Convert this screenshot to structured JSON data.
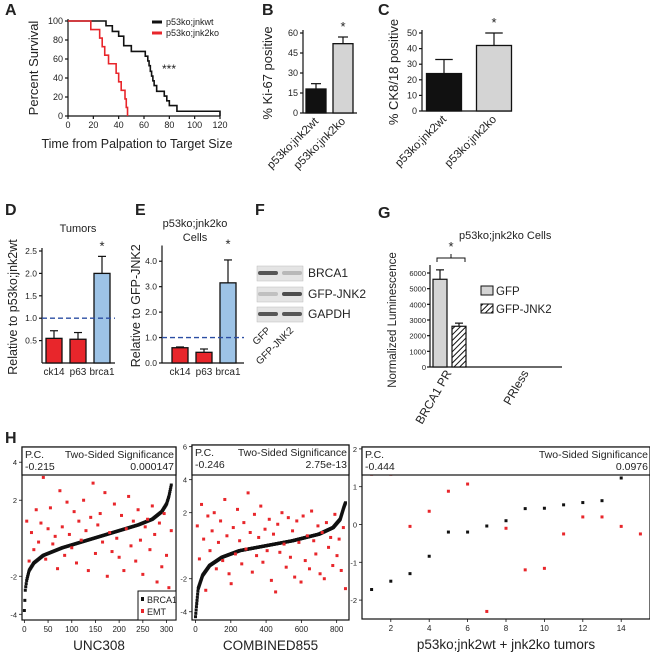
{
  "panel_letters": {
    "A": "A",
    "B": "B",
    "C": "C",
    "D": "D",
    "E": "E",
    "F": "F",
    "G": "G",
    "H": "H"
  },
  "colors": {
    "black": "#111111",
    "red": "#e8262b",
    "gray": "#d4d4d4",
    "blue": "#9dc3e6",
    "dashed": "#2b4ea3"
  },
  "chart_data": [
    {
      "id": "A",
      "type": "line",
      "title": "",
      "xlabel": "Time from Palpation to Target Size",
      "ylabel": "Percent Survival",
      "xlim": [
        0,
        120
      ],
      "ylim": [
        0,
        100
      ],
      "xticks": [
        "0",
        "20",
        "40",
        "60",
        "80",
        "100",
        "120"
      ],
      "yticks": [
        "0",
        "20",
        "40",
        "60",
        "80",
        "100"
      ],
      "annotation": "***",
      "legend_position": "top-right",
      "series": [
        {
          "name": "p53ko;jnkwt",
          "color": "#111111",
          "x": [
            0,
            30,
            35,
            40,
            44,
            50,
            61,
            63,
            64,
            65,
            66,
            67,
            68,
            70,
            76,
            78,
            80,
            86,
            120
          ],
          "y": [
            100,
            95,
            89,
            84,
            74,
            68,
            63,
            58,
            53,
            47,
            42,
            37,
            32,
            26,
            21,
            16,
            11,
            5,
            0
          ]
        },
        {
          "name": "p53ko;jnk2ko",
          "color": "#e8262b",
          "x": [
            0,
            18,
            25,
            27,
            29,
            32,
            38,
            40,
            42,
            45,
            46,
            47
          ],
          "y": [
            100,
            91,
            82,
            73,
            64,
            55,
            45,
            36,
            27,
            18,
            9,
            0
          ]
        }
      ]
    },
    {
      "id": "B",
      "type": "bar",
      "ylabel": "% Ki-67 positive",
      "ylim": [
        0,
        60
      ],
      "yticks": [
        "0",
        "15",
        "30",
        "45",
        "60"
      ],
      "categories": [
        "p53ko;jnk2wt",
        "p53ko;jnk2ko"
      ],
      "values": [
        18,
        52
      ],
      "errors": [
        4,
        5
      ],
      "significance": [
        "",
        "*"
      ]
    },
    {
      "id": "C",
      "type": "bar",
      "ylabel": "% CK8/18 positive",
      "ylim": [
        0,
        50
      ],
      "yticks": [
        "0",
        "10",
        "20",
        "30",
        "40",
        "50"
      ],
      "categories": [
        "p53ko;jnk2wt",
        "p53ko;jnk2ko"
      ],
      "values": [
        24,
        42
      ],
      "errors": [
        9,
        8
      ],
      "significance": [
        "",
        "*"
      ]
    },
    {
      "id": "D",
      "type": "bar",
      "title": "Tumors",
      "ylabel": "Relative to p53ko;jnk2wt",
      "ylim": [
        0,
        2.5
      ],
      "yticks": [
        "0.5",
        "1.0",
        "1.5",
        "2.0",
        "2.5"
      ],
      "categories": [
        "ck14",
        "p63",
        "brca1"
      ],
      "values": [
        0.55,
        0.53,
        2.0
      ],
      "errors": [
        0.17,
        0.15,
        0.38
      ],
      "significance": [
        "",
        "",
        "*"
      ],
      "reference_line": 1.0
    },
    {
      "id": "E",
      "type": "bar",
      "title": [
        "p53ko;jnk2ko",
        "Cells"
      ],
      "ylabel": "Relative to GFP-JNK2",
      "ylim": [
        0,
        4.5
      ],
      "yticks": [
        "0.0",
        "1.0",
        "2.0",
        "3.0",
        "4.0"
      ],
      "categories": [
        "ck14",
        "p63",
        "brca1"
      ],
      "values": [
        0.6,
        0.42,
        3.15
      ],
      "errors": [
        0.03,
        0.13,
        0.9
      ],
      "significance": [
        "",
        "",
        "*"
      ],
      "reference_line": 1.0
    },
    {
      "id": "G",
      "type": "bar",
      "title": "p53ko;jnk2ko Cells",
      "ylabel": "Normalized Luminescence",
      "ylim": [
        0,
        6000
      ],
      "yticks": [
        "0",
        "1000",
        "2000",
        "3000",
        "4000",
        "5000",
        "6000"
      ],
      "categories": [
        "BRCA1 PR",
        "PRless"
      ],
      "series": [
        {
          "name": "GFP",
          "values": [
            5600,
            0
          ],
          "errors": [
            600,
            0
          ]
        },
        {
          "name": "GFP-JNK2",
          "values": [
            2600,
            0
          ],
          "errors": [
            200,
            0
          ]
        }
      ],
      "significance": "*",
      "legend_position": "right"
    },
    {
      "id": "H1",
      "type": "scatter",
      "xlabel": "UNC308",
      "xlim": [
        -5,
        320
      ],
      "ylim": [
        -4.3,
        4.8
      ],
      "xticks": [
        "0",
        "50",
        "100",
        "150",
        "200",
        "250",
        "300"
      ],
      "yticks": [
        "-4",
        "-2",
        "2",
        "4"
      ],
      "pc_label": "P.C.",
      "pc_value": "-0.215",
      "sig_label": "Two-Sided Significance",
      "sig_value": "0.000147",
      "legend": [
        "BRCA1",
        "EMT"
      ],
      "series": [
        {
          "name": "BRCA1",
          "color": "#111111",
          "x": [
            0,
            2,
            5,
            10,
            20,
            40,
            80,
            120,
            160,
            200,
            240,
            270,
            290,
            300,
            305,
            310
          ],
          "y": [
            -3.8,
            -2.7,
            -2.2,
            -1.7,
            -1.3,
            -0.9,
            -0.5,
            -0.2,
            0.1,
            0.4,
            0.7,
            1.0,
            1.4,
            1.8,
            2.2,
            2.8
          ]
        },
        {
          "name": "EMT",
          "color": "#e8262b",
          "x": [
            5,
            10,
            15,
            20,
            25,
            30,
            35,
            40,
            45,
            50,
            55,
            60,
            65,
            70,
            75,
            80,
            85,
            90,
            95,
            100,
            105,
            110,
            115,
            120,
            125,
            130,
            135,
            140,
            145,
            150,
            155,
            160,
            165,
            170,
            175,
            180,
            185,
            190,
            195,
            200,
            205,
            210,
            215,
            220,
            225,
            230,
            235,
            240,
            245,
            250,
            255,
            260,
            265,
            270,
            275,
            280,
            285,
            290,
            295,
            300,
            305,
            310
          ],
          "y": [
            0.9,
            -1.2,
            0.3,
            -0.6,
            1.5,
            -0.2,
            0.8,
            3.2,
            -1.1,
            0.5,
            1.6,
            -0.3,
            0.1,
            -1.6,
            2.5,
            0.6,
            -0.9,
            1.9,
            0.2,
            -0.5,
            1.4,
            -1.3,
            0.9,
            -0.1,
            2.0,
            0.4,
            -1.7,
            1.1,
            2.9,
            -0.8,
            0.7,
            1.3,
            -0.2,
            2.4,
            -2.0,
            0.3,
            -0.7,
            1.8,
            0.0,
            -1.0,
            1.2,
            -1.7,
            0.5,
            2.2,
            -0.4,
            0.9,
            -1.2,
            1.5,
            -0.1,
            -1.9,
            0.6,
            1.0,
            -0.6,
            1.7,
            0.2,
            -2.3,
            0.8,
            -1.5,
            1.3,
            -0.9,
            -2.6,
            0.4
          ]
        }
      ]
    },
    {
      "id": "H2",
      "type": "scatter",
      "xlabel": "COMBINED855",
      "xlim": [
        -20,
        870
      ],
      "ylim": [
        -4.5,
        6.1
      ],
      "xticks": [
        "0",
        "200",
        "400",
        "600",
        "800"
      ],
      "yticks": [
        "-4",
        "-2",
        "2",
        "4",
        "6"
      ],
      "pc_label": "P.C.",
      "pc_value": "-0.246",
      "sig_label": "Two-Sided Significance",
      "sig_value": "2.75e-13",
      "series": [
        {
          "name": "BRCA1",
          "color": "#111111",
          "x": [
            0,
            5,
            15,
            40,
            80,
            150,
            250,
            400,
            550,
            700,
            780,
            820,
            840,
            850
          ],
          "y": [
            -4.3,
            -3.7,
            -2.6,
            -1.8,
            -1.2,
            -0.7,
            -0.3,
            0.0,
            0.3,
            0.7,
            1.1,
            1.6,
            2.3,
            2.6
          ]
        },
        {
          "name": "EMT",
          "color": "#e8262b",
          "x": [
            10,
            22,
            34,
            46,
            58,
            70,
            82,
            94,
            106,
            118,
            130,
            142,
            154,
            166,
            178,
            190,
            202,
            214,
            226,
            238,
            250,
            262,
            274,
            286,
            298,
            310,
            322,
            334,
            346,
            358,
            370,
            382,
            394,
            406,
            418,
            430,
            442,
            454,
            466,
            478,
            490,
            502,
            514,
            526,
            538,
            550,
            562,
            574,
            586,
            598,
            610,
            622,
            634,
            646,
            658,
            670,
            682,
            694,
            706,
            718,
            730,
            742,
            754,
            766,
            778,
            790,
            802,
            814,
            826,
            838,
            850
          ],
          "y": [
            1.2,
            -0.8,
            2.5,
            0.4,
            -2.7,
            1.8,
            -0.3,
            0.9,
            2.0,
            -1.4,
            0.2,
            1.5,
            -0.9,
            2.8,
            0.6,
            -1.7,
            -2.3,
            1.1,
            -0.5,
            2.2,
            0.3,
            -1.1,
            1.4,
            -0.2,
            3.2,
            0.8,
            -1.6,
            1.9,
            -0.6,
            0.5,
            2.4,
            -1.0,
            1.0,
            -0.3,
            1.6,
            -2.1,
            0.7,
            -2.8,
            1.3,
            -0.4,
            2.0,
            0.1,
            -1.3,
            1.7,
            -0.7,
            0.9,
            -1.9,
            1.5,
            0.2,
            -2.2,
            1.8,
            -0.9,
            0.6,
            -1.4,
            2.1,
            0.3,
            -0.5,
            1.2,
            -1.7,
            0.8,
            -2.0,
            1.4,
            -0.1,
            0.5,
            -1.2,
            1.9,
            -0.6,
            0.4,
            -1.5,
            1.1,
            -2.6
          ]
        }
      ]
    },
    {
      "id": "H3",
      "type": "scatter",
      "xlabel": "p53ko;jnk2wt + jnk2ko tumors",
      "xlim": [
        0.5,
        15.5
      ],
      "ylim": [
        -2.5,
        2.05
      ],
      "xticks": [
        "2",
        "4",
        "6",
        "8",
        "10",
        "12",
        "14"
      ],
      "yticks": [
        "-2",
        "-1",
        "0",
        "1",
        "2"
      ],
      "pc_label": "P.C.",
      "pc_value": "-0.444",
      "sig_label": "Two-Sided Significance",
      "sig_value": "0.0976",
      "series": [
        {
          "name": "BRCA1",
          "color": "#111111",
          "x": [
            1,
            2,
            3,
            4,
            5,
            6,
            7,
            8,
            9,
            10,
            11,
            12,
            13,
            14,
            15
          ],
          "y": [
            -1.72,
            -1.5,
            -1.3,
            -0.84,
            -0.2,
            -0.2,
            -0.04,
            0.1,
            0.42,
            0.43,
            0.52,
            0.58,
            0.63,
            1.23,
            1.9
          ]
        },
        {
          "name": "EMT",
          "color": "#e8262b",
          "x": [
            1,
            2,
            3,
            4,
            5,
            6,
            7,
            8,
            9,
            10,
            11,
            12,
            13,
            14,
            15
          ],
          "y": [
            1.33,
            1.33,
            -0.05,
            0.35,
            0.88,
            1.07,
            -2.3,
            -0.1,
            -1.2,
            -1.16,
            -0.25,
            0.2,
            0.2,
            -0.05,
            -0.25
          ]
        }
      ]
    }
  ],
  "blot_F": {
    "rows": [
      "BRCA1",
      "GFP-JNK2",
      "GAPDH"
    ],
    "lanes": [
      "GFP",
      "GFP-JNK2"
    ]
  }
}
